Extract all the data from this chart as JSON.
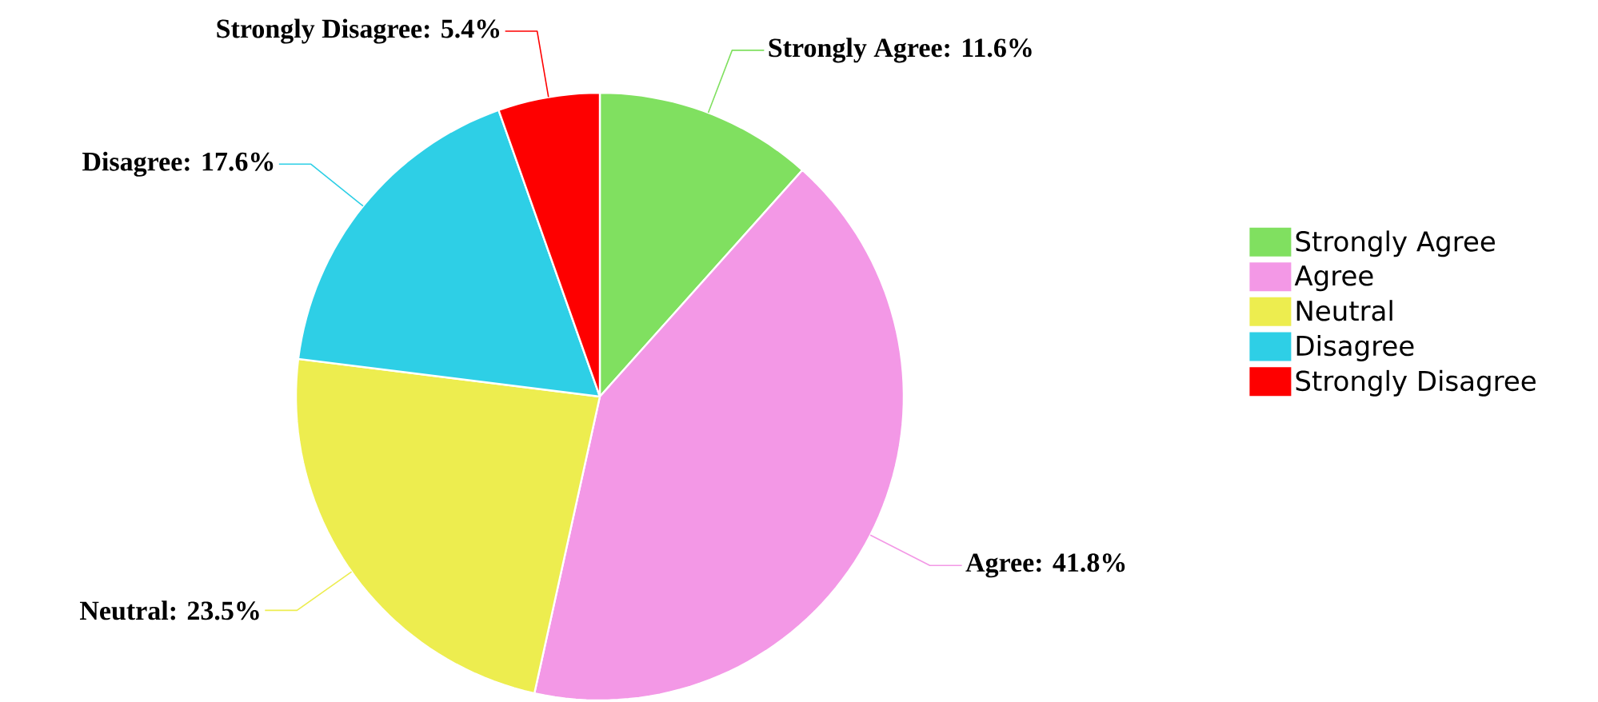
{
  "chart_data": {
    "type": "pie",
    "categories": [
      "Strongly Agree",
      "Agree",
      "Neutral",
      "Disagree",
      "Strongly Disagree"
    ],
    "values": [
      11.6,
      41.8,
      23.5,
      17.6,
      5.4
    ],
    "colors": [
      "#80e060",
      "#f398e6",
      "#eded4f",
      "#2ecfe6",
      "#fe0000"
    ],
    "value_labels": [
      "Strongly Agree: 11.6%",
      "Agree: 41.8%",
      "Neutral: 23.5%",
      "Disagree: 17.6%",
      "Strongly Disagree: 5.4%"
    ],
    "legend": "right"
  }
}
